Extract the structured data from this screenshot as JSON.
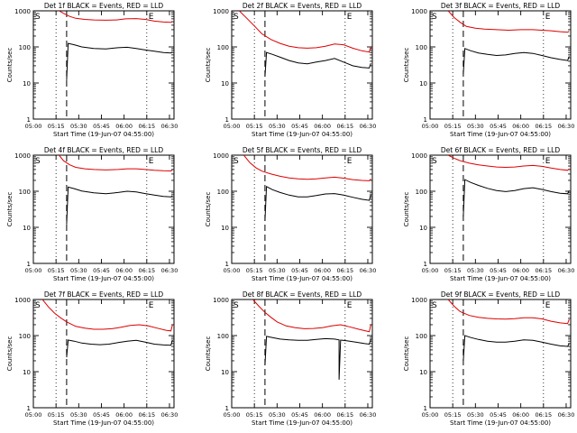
{
  "chart_data": [
    {
      "type": "line",
      "title": "Det 1f BLACK = Events, RED = LLD",
      "xlabel": "Start Time (19-Jun-07 04:55:00)",
      "ylabel": "Counts/sec",
      "y_scale": "log",
      "ylim": [
        1,
        1000
      ],
      "xlim": [
        "05:00",
        "06:33"
      ],
      "x_ticks": [
        "05:00",
        "05:15",
        "05:30",
        "05:45",
        "06:00",
        "06:15",
        "06:30"
      ],
      "y_ticks": [
        "1",
        "10",
        "100",
        "1000"
      ],
      "markers": {
        "S": "05:00",
        "E": "06:15"
      },
      "vlines_dotted": [
        "05:15",
        "06:15"
      ],
      "vline_dashed": "05:22",
      "series": [
        {
          "name": "BLACK = Events",
          "color": "#000000",
          "x": [
            "05:22",
            "05:23",
            "05:27",
            "05:32",
            "05:40",
            "05:48",
            "05:56",
            "06:02",
            "06:08",
            "06:14",
            "06:20",
            "06:26",
            "06:31",
            "06:32"
          ],
          "y": [
            12,
            125,
            115,
            100,
            90,
            88,
            95,
            98,
            90,
            82,
            76,
            70,
            68,
            72
          ]
        },
        {
          "name": "RED = LLD",
          "color": "#dd0000",
          "x": [
            "05:17",
            "05:20",
            "05:24",
            "05:28",
            "05:34",
            "05:40",
            "05:48",
            "05:55",
            "06:01",
            "06:08",
            "06:14",
            "06:20",
            "06:26",
            "06:31",
            "06:32"
          ],
          "y": [
            1000,
            850,
            700,
            620,
            580,
            560,
            550,
            560,
            600,
            610,
            580,
            520,
            490,
            480,
            500
          ]
        }
      ]
    },
    {
      "type": "line",
      "title": "Det 2f BLACK = Events, RED = LLD",
      "xlabel": "Start Time (19-Jun-07 04:55:00)",
      "ylabel": "Counts/sec",
      "y_scale": "log",
      "ylim": [
        1,
        1000
      ],
      "xlim": [
        "05:00",
        "06:33"
      ],
      "x_ticks": [
        "05:00",
        "05:15",
        "05:30",
        "05:45",
        "06:00",
        "06:15",
        "06:30"
      ],
      "y_ticks": [
        "1",
        "10",
        "100",
        "1000"
      ],
      "markers": {
        "S": "05:00",
        "E": "06:15"
      },
      "vlines_dotted": [
        "05:15",
        "06:15"
      ],
      "vline_dashed": "05:22",
      "series": [
        {
          "name": "BLACK = Events",
          "color": "#000000",
          "x": [
            "05:22",
            "05:23",
            "05:27",
            "05:32",
            "05:38",
            "05:44",
            "05:50",
            "05:56",
            "06:02",
            "06:08",
            "06:14",
            "06:20",
            "06:26",
            "06:31",
            "06:32"
          ],
          "y": [
            15,
            70,
            62,
            52,
            42,
            36,
            34,
            38,
            42,
            48,
            38,
            30,
            27,
            26,
            35
          ]
        },
        {
          "name": "RED = LLD",
          "color": "#dd0000",
          "x": [
            "05:05",
            "05:10",
            "05:15",
            "05:20",
            "05:26",
            "05:32",
            "05:38",
            "05:44",
            "05:50",
            "05:56",
            "06:02",
            "06:08",
            "06:14",
            "06:20",
            "06:26",
            "06:31",
            "06:32"
          ],
          "y": [
            1000,
            620,
            380,
            230,
            160,
            125,
            105,
            95,
            92,
            95,
            105,
            120,
            115,
            92,
            78,
            72,
            100
          ]
        }
      ]
    },
    {
      "type": "line",
      "title": "Det 3f BLACK = Events, RED = LLD",
      "xlabel": "Start Time (19-Jun-07 04:55:00)",
      "ylabel": "Counts/sec",
      "y_scale": "log",
      "ylim": [
        1,
        1000
      ],
      "xlim": [
        "05:00",
        "06:33"
      ],
      "x_ticks": [
        "05:00",
        "05:15",
        "05:30",
        "05:45",
        "06:00",
        "06:15",
        "06:30"
      ],
      "y_ticks": [
        "1",
        "10",
        "100",
        "1000"
      ],
      "markers": {
        "S": "05:00",
        "E": "06:15"
      },
      "vlines_dotted": [
        "05:15",
        "06:15"
      ],
      "vline_dashed": "05:22",
      "series": [
        {
          "name": "BLACK = Events",
          "color": "#000000",
          "x": [
            "05:22",
            "05:23",
            "05:27",
            "05:32",
            "05:38",
            "05:44",
            "05:50",
            "05:56",
            "06:02",
            "06:08",
            "06:14",
            "06:20",
            "06:26",
            "06:31",
            "06:32"
          ],
          "y": [
            18,
            90,
            78,
            68,
            62,
            58,
            60,
            66,
            70,
            66,
            58,
            50,
            45,
            42,
            55
          ]
        },
        {
          "name": "RED = LLD",
          "color": "#dd0000",
          "x": [
            "05:12",
            "05:16",
            "05:20",
            "05:24",
            "05:30",
            "05:36",
            "05:44",
            "05:52",
            "06:00",
            "06:08",
            "06:14",
            "06:20",
            "06:26",
            "06:31",
            "06:32"
          ],
          "y": [
            1000,
            650,
            480,
            370,
            330,
            310,
            300,
            290,
            300,
            300,
            290,
            280,
            265,
            255,
            270
          ]
        }
      ]
    },
    {
      "type": "line",
      "title": "Det 4f BLACK = Events, RED = LLD",
      "xlabel": "Start Time (19-Jun-07 04:55:00)",
      "ylabel": "Counts/sec",
      "y_scale": "log",
      "ylim": [
        1,
        1000
      ],
      "xlim": [
        "05:00",
        "06:33"
      ],
      "x_ticks": [
        "05:00",
        "05:15",
        "05:30",
        "05:45",
        "06:00",
        "06:15",
        "06:30"
      ],
      "y_ticks": [
        "1",
        "10",
        "100",
        "1000"
      ],
      "markers": {
        "S": "05:00",
        "E": "06:15"
      },
      "vlines_dotted": [
        "05:15",
        "06:15"
      ],
      "vline_dashed": "05:22",
      "series": [
        {
          "name": "BLACK = Events",
          "color": "#000000",
          "x": [
            "05:22",
            "05:23",
            "05:27",
            "05:32",
            "05:40",
            "05:48",
            "05:56",
            "06:02",
            "06:08",
            "06:14",
            "06:20",
            "06:26",
            "06:31",
            "06:32"
          ],
          "y": [
            12,
            130,
            118,
            102,
            90,
            85,
            92,
            100,
            96,
            86,
            78,
            72,
            70,
            74
          ]
        },
        {
          "name": "RED = LLD",
          "color": "#dd0000",
          "x": [
            "05:17",
            "05:20",
            "05:24",
            "05:28",
            "05:34",
            "05:40",
            "05:48",
            "05:56",
            "06:02",
            "06:08",
            "06:14",
            "06:20",
            "06:26",
            "06:31",
            "06:32"
          ],
          "y": [
            1000,
            700,
            540,
            460,
            420,
            400,
            390,
            400,
            420,
            420,
            400,
            380,
            370,
            365,
            390
          ]
        }
      ]
    },
    {
      "type": "line",
      "title": "Det 5f BLACK = Events, RED = LLD",
      "xlabel": "Start Time (19-Jun-07 04:55:00)",
      "ylabel": "Counts/sec",
      "y_scale": "log",
      "ylim": [
        1,
        1000
      ],
      "xlim": [
        "05:00",
        "06:33"
      ],
      "x_ticks": [
        "05:00",
        "05:15",
        "05:30",
        "05:45",
        "06:00",
        "06:15",
        "06:30"
      ],
      "y_ticks": [
        "1",
        "10",
        "100",
        "1000"
      ],
      "markers": {
        "S": "05:00",
        "E": "06:15"
      },
      "vlines_dotted": [
        "05:15",
        "06:15"
      ],
      "vline_dashed": "05:22",
      "series": [
        {
          "name": "BLACK = Events",
          "color": "#000000",
          "x": [
            "05:22",
            "05:23",
            "05:27",
            "05:32",
            "05:38",
            "05:44",
            "05:50",
            "05:56",
            "06:02",
            "06:08",
            "06:14",
            "06:20",
            "06:26",
            "06:31",
            "06:32"
          ],
          "y": [
            15,
            135,
            110,
            92,
            78,
            70,
            70,
            76,
            84,
            86,
            78,
            68,
            60,
            56,
            80
          ]
        },
        {
          "name": "RED = LLD",
          "color": "#dd0000",
          "x": [
            "05:08",
            "05:12",
            "05:16",
            "05:20",
            "05:26",
            "05:32",
            "05:38",
            "05:44",
            "05:50",
            "05:56",
            "06:02",
            "06:08",
            "06:14",
            "06:20",
            "06:26",
            "06:31",
            "06:32"
          ],
          "y": [
            1000,
            620,
            450,
            360,
            300,
            260,
            235,
            220,
            215,
            220,
            235,
            245,
            230,
            210,
            200,
            195,
            220
          ]
        }
      ]
    },
    {
      "type": "line",
      "title": "Det 6f BLACK = Events, RED = LLD",
      "xlabel": "Start Time (19-Jun-07 04:55:00)",
      "ylabel": "Counts/sec",
      "y_scale": "log",
      "ylim": [
        1,
        1000
      ],
      "xlim": [
        "05:00",
        "06:33"
      ],
      "x_ticks": [
        "05:00",
        "05:15",
        "05:30",
        "05:45",
        "06:00",
        "06:15",
        "06:30"
      ],
      "y_ticks": [
        "1",
        "10",
        "100",
        "1000"
      ],
      "markers": {
        "S": "05:00",
        "E": "06:15"
      },
      "vlines_dotted": [
        "05:15",
        "06:15"
      ],
      "vline_dashed": "05:22",
      "series": [
        {
          "name": "BLACK = Events",
          "color": "#000000",
          "x": [
            "05:22",
            "05:23",
            "05:27",
            "05:32",
            "05:38",
            "05:44",
            "05:50",
            "05:56",
            "06:02",
            "06:08",
            "06:14",
            "06:20",
            "06:26",
            "06:31",
            "06:32"
          ],
          "y": [
            20,
            210,
            175,
            145,
            120,
            105,
            98,
            105,
            118,
            125,
            112,
            98,
            88,
            85,
            105
          ]
        },
        {
          "name": "RED = LLD",
          "color": "#dd0000",
          "x": [
            "05:12",
            "05:16",
            "05:20",
            "05:26",
            "05:32",
            "05:38",
            "05:44",
            "05:50",
            "05:56",
            "06:02",
            "06:08",
            "06:14",
            "06:20",
            "06:26",
            "06:31",
            "06:32"
          ],
          "y": [
            1000,
            820,
            700,
            600,
            540,
            500,
            470,
            460,
            470,
            500,
            520,
            490,
            440,
            400,
            380,
            420
          ]
        }
      ]
    },
    {
      "type": "line",
      "title": "Det 7f BLACK = Events, RED = LLD",
      "xlabel": "Start Time (19-Jun-07 04:55:00)",
      "ylabel": "Counts/sec",
      "y_scale": "log",
      "ylim": [
        1,
        1000
      ],
      "xlim": [
        "05:00",
        "06:33"
      ],
      "x_ticks": [
        "05:00",
        "05:15",
        "05:30",
        "05:45",
        "06:00",
        "06:15",
        "06:30"
      ],
      "y_ticks": [
        "1",
        "10",
        "100",
        "1000"
      ],
      "markers": {
        "S": "05:00",
        "E": "06:15"
      },
      "vlines_dotted": [
        "05:15",
        "06:15"
      ],
      "vline_dashed": "05:22",
      "series": [
        {
          "name": "BLACK = Events",
          "color": "#000000",
          "x": [
            "05:22",
            "05:23",
            "05:27",
            "05:32",
            "05:38",
            "05:44",
            "05:50",
            "05:56",
            "06:02",
            "06:08",
            "06:14",
            "06:20",
            "06:26",
            "06:31",
            "06:32"
          ],
          "y": [
            25,
            75,
            70,
            62,
            58,
            56,
            58,
            64,
            70,
            74,
            66,
            58,
            55,
            54,
            75
          ]
        },
        {
          "name": "RED = LLD",
          "color": "#dd0000",
          "x": [
            "05:06",
            "05:10",
            "05:14",
            "05:18",
            "05:22",
            "05:28",
            "05:34",
            "05:40",
            "05:46",
            "05:52",
            "05:58",
            "06:04",
            "06:10",
            "06:16",
            "06:22",
            "06:28",
            "06:31",
            "06:32"
          ],
          "y": [
            1000,
            620,
            420,
            310,
            240,
            180,
            160,
            150,
            150,
            155,
            170,
            190,
            200,
            185,
            160,
            140,
            135,
            200
          ]
        }
      ]
    },
    {
      "type": "line",
      "title": "Det 8f BLACK = Events, RED = LLD",
      "xlabel": "Start Time (19-Jun-07 04:55:00)",
      "ylabel": "Counts/sec",
      "y_scale": "log",
      "ylim": [
        1,
        1000
      ],
      "xlim": [
        "05:00",
        "06:33"
      ],
      "x_ticks": [
        "05:00",
        "05:15",
        "05:30",
        "05:45",
        "06:00",
        "06:15",
        "06:30"
      ],
      "y_ticks": [
        "1",
        "10",
        "100",
        "1000"
      ],
      "markers": {
        "S": "05:00",
        "E": "06:15"
      },
      "vlines_dotted": [
        "05:15",
        "06:15"
      ],
      "vline_dashed": "05:22",
      "series": [
        {
          "name": "BLACK = Events",
          "color": "#000000",
          "x": [
            "05:22",
            "05:23",
            "05:27",
            "05:32",
            "05:38",
            "05:44",
            "05:50",
            "05:56",
            "06:02",
            "06:08",
            "06:11",
            "06:11",
            "06:12",
            "06:16",
            "06:22",
            "06:28",
            "06:31",
            "06:32"
          ],
          "y": [
            15,
            95,
            88,
            80,
            76,
            74,
            74,
            78,
            82,
            80,
            76,
            6,
            75,
            72,
            66,
            60,
            58,
            80
          ]
        },
        {
          "name": "RED = LLD",
          "color": "#dd0000",
          "x": [
            "05:14",
            "05:18",
            "05:22",
            "05:26",
            "05:30",
            "05:36",
            "05:42",
            "05:48",
            "05:54",
            "06:00",
            "06:06",
            "06:12",
            "06:18",
            "06:24",
            "06:30",
            "06:31",
            "06:32"
          ],
          "y": [
            1000,
            650,
            440,
            320,
            240,
            185,
            165,
            155,
            158,
            165,
            185,
            200,
            175,
            150,
            130,
            128,
            200
          ]
        }
      ]
    },
    {
      "type": "line",
      "title": "Det 9f BLACK = Events, RED = LLD",
      "xlabel": "Start Time (19-Jun-07 04:55:00)",
      "ylabel": "Counts/sec",
      "y_scale": "log",
      "ylim": [
        1,
        1000
      ],
      "xlim": [
        "05:00",
        "06:33"
      ],
      "x_ticks": [
        "05:00",
        "05:15",
        "05:30",
        "05:45",
        "06:00",
        "06:15",
        "06:30"
      ],
      "y_ticks": [
        "1",
        "10",
        "100",
        "1000"
      ],
      "markers": {
        "S": "05:00",
        "E": "06:15"
      },
      "vlines_dotted": [
        "05:15",
        "06:15"
      ],
      "vline_dashed": "05:22",
      "series": [
        {
          "name": "BLACK = Events",
          "color": "#000000",
          "x": [
            "05:22",
            "05:23",
            "05:27",
            "05:32",
            "05:38",
            "05:44",
            "05:50",
            "05:56",
            "06:02",
            "06:08",
            "06:14",
            "06:20",
            "06:26",
            "06:31",
            "06:32"
          ],
          "y": [
            20,
            100,
            88,
            78,
            70,
            66,
            66,
            70,
            76,
            74,
            66,
            58,
            52,
            50,
            60
          ]
        },
        {
          "name": "RED = LLD",
          "color": "#dd0000",
          "x": [
            "05:12",
            "05:16",
            "05:20",
            "05:26",
            "05:32",
            "05:38",
            "05:44",
            "05:50",
            "05:56",
            "06:02",
            "06:08",
            "06:14",
            "06:20",
            "06:26",
            "06:31",
            "06:32"
          ],
          "y": [
            1000,
            650,
            460,
            360,
            320,
            300,
            290,
            285,
            295,
            310,
            310,
            290,
            250,
            225,
            215,
            280
          ]
        }
      ]
    }
  ]
}
